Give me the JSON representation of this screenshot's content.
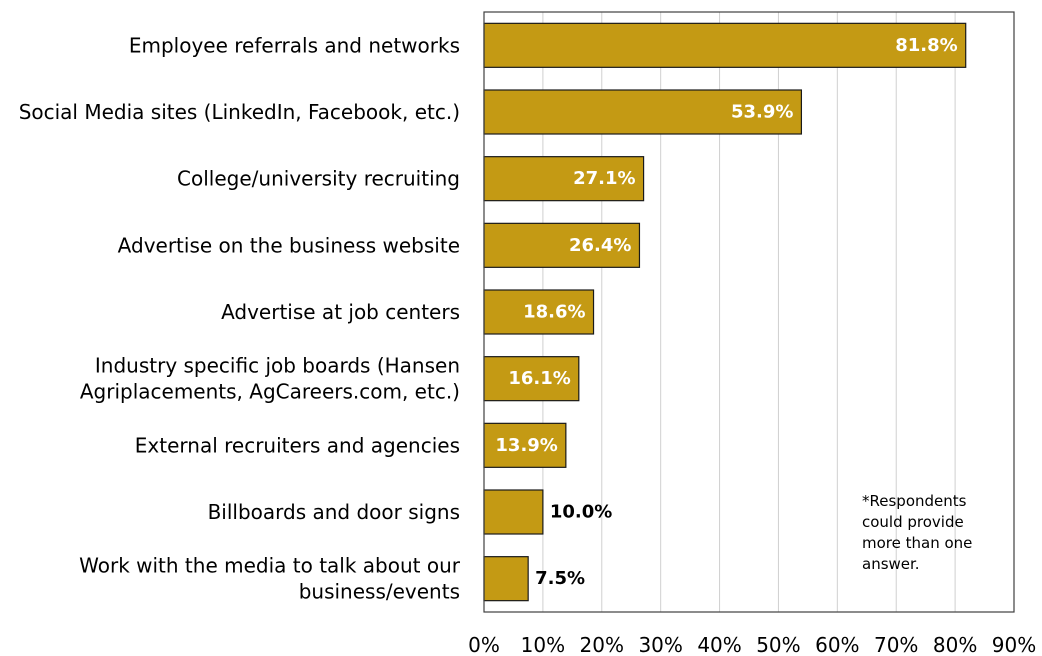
{
  "colors": {
    "bar_fill": "#C49A14",
    "bar_stroke": "#1a1a1a",
    "grid": "#d0d0d0",
    "frame": "#404040",
    "label_inside": "#FFFFFF",
    "label_outside": "#000000"
  },
  "chart_data": {
    "type": "bar",
    "orientation": "horizontal",
    "title": "",
    "xlabel": "",
    "ylabel": "",
    "categories": [
      [
        "Employee referrals and networks"
      ],
      [
        "Social Media sites (LinkedIn, Facebook, etc.)"
      ],
      [
        "College/university recruiting"
      ],
      [
        "Advertise on the business website"
      ],
      [
        "Advertise at job centers"
      ],
      [
        "Industry specific job boards (Hansen",
        "Agriplacements, AgCareers.com, etc.)"
      ],
      [
        "External recruiters and agencies"
      ],
      [
        "Billboards and door signs"
      ],
      [
        "Work with the media to talk about our",
        "business/events"
      ]
    ],
    "values": [
      81.8,
      53.9,
      27.1,
      26.4,
      18.6,
      16.1,
      13.9,
      10.0,
      7.5
    ],
    "value_labels": [
      "81.8%",
      "53.9%",
      "27.1%",
      "26.4%",
      "18.6%",
      "16.1%",
      "13.9%",
      "10.0%",
      "7.5%"
    ],
    "xlim": [
      0,
      90
    ],
    "xticks": [
      0,
      10,
      20,
      30,
      40,
      50,
      60,
      70,
      80,
      90
    ],
    "xtick_labels": [
      "0%",
      "10%",
      "20%",
      "30%",
      "40%",
      "50%",
      "60%",
      "70%",
      "80%",
      "90%"
    ],
    "grid": "vertical",
    "legend": "none",
    "annotation": [
      "*Respondents",
      "could provide",
      "more than one",
      "answer."
    ]
  }
}
